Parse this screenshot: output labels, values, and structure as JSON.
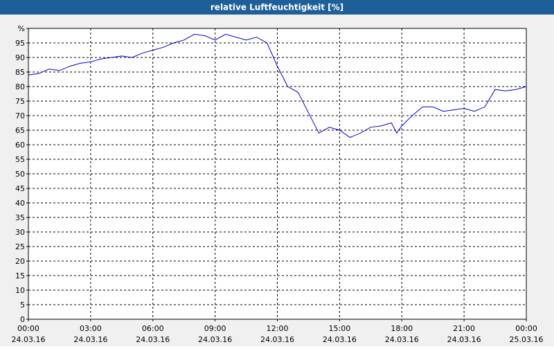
{
  "chart_data": {
    "type": "line",
    "title": "relative Luftfeuchtigkeit [%]",
    "x": [
      0,
      0.5,
      1,
      1.5,
      2,
      2.5,
      3,
      3.5,
      4,
      4.5,
      5,
      5.5,
      6,
      6.5,
      7,
      7.5,
      8,
      8.5,
      9,
      9.5,
      10,
      10.5,
      11,
      11.5,
      12,
      12.5,
      13,
      13.5,
      14,
      14.5,
      15,
      15.5,
      16,
      16.5,
      17,
      17.5,
      17.75,
      18,
      18.5,
      19,
      19.5,
      20,
      20.5,
      21,
      21.5,
      22,
      22.5,
      23,
      23.5,
      24
    ],
    "series": [
      {
        "color": "#0000cc",
        "values": [
          84,
          84.5,
          86,
          85.5,
          87,
          88,
          88.5,
          89.5,
          90,
          90.5,
          90,
          91.5,
          92.5,
          93.5,
          95,
          96,
          98,
          97.5,
          96,
          98,
          97,
          96,
          97,
          95,
          87,
          80,
          78,
          71,
          64,
          66,
          65,
          62.5,
          64,
          66,
          66.5,
          67.5,
          64,
          66.5,
          70,
          73,
          73,
          71.5,
          72,
          72.5,
          71.5,
          73,
          79,
          78.5,
          79,
          80
        ]
      }
    ],
    "xlim": [
      0,
      24
    ],
    "xticks": [
      {
        "value": 0,
        "label": "00:00",
        "date": "24.03.16"
      },
      {
        "value": 3,
        "label": "03:00",
        "date": "24.03.16"
      },
      {
        "value": 6,
        "label": "06:00",
        "date": "24.03.16"
      },
      {
        "value": 9,
        "label": "09:00",
        "date": "24.03.16"
      },
      {
        "value": 12,
        "label": "12:00",
        "date": "24.03.16"
      },
      {
        "value": 15,
        "label": "15:00",
        "date": "24.03.16"
      },
      {
        "value": 18,
        "label": "18:00",
        "date": "24.03.16"
      },
      {
        "value": 21,
        "label": "21:00",
        "date": "24.03.16"
      },
      {
        "value": 24,
        "label": "00:00",
        "date": "25.03.16"
      }
    ],
    "ylim": [
      0,
      100
    ],
    "yticks": [
      0,
      5,
      10,
      15,
      20,
      25,
      30,
      35,
      40,
      45,
      50,
      55,
      60,
      65,
      70,
      75,
      80,
      85,
      90,
      95,
      {
        "value": 100,
        "label": "%"
      }
    ],
    "grid": true
  }
}
